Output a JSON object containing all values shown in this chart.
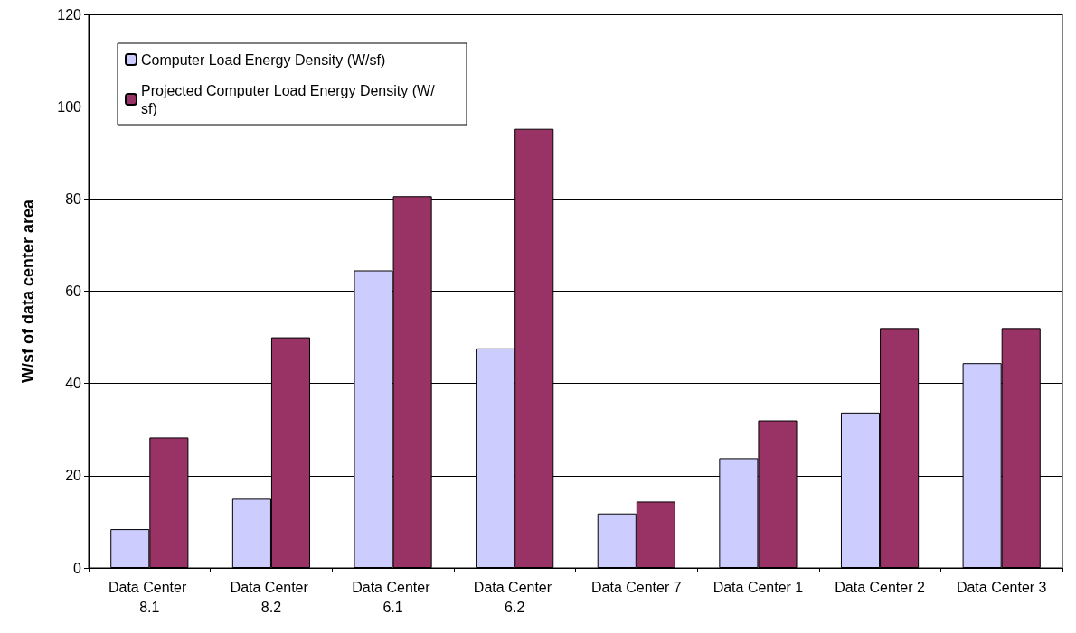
{
  "chart_data": {
    "type": "bar",
    "ylabel": "W/sf of data center area",
    "categories": [
      "Data Center 8.1",
      "Data Center 8.2",
      "Data Center 6.1",
      "Data Center 6.2",
      "Data Center 7",
      "Data Center 1",
      "Data Center 2",
      "Data Center 3"
    ],
    "series": [
      {
        "name": "Computer Load Energy Density (W/sf)",
        "color": "#ccccff",
        "values": [
          8.4,
          15,
          64.5,
          47.6,
          11.8,
          23.8,
          33.7,
          44.4
        ]
      },
      {
        "name": "Projected Computer Load Energy Density (W/sf)",
        "color": "#993366",
        "values": [
          28.3,
          50,
          80.6,
          95.2,
          14.4,
          32,
          52,
          52
        ]
      }
    ],
    "ylim": [
      0,
      120
    ],
    "yticks": [
      0,
      20,
      40,
      60,
      80,
      100,
      120
    ],
    "grid": "y",
    "legend": "top left"
  }
}
